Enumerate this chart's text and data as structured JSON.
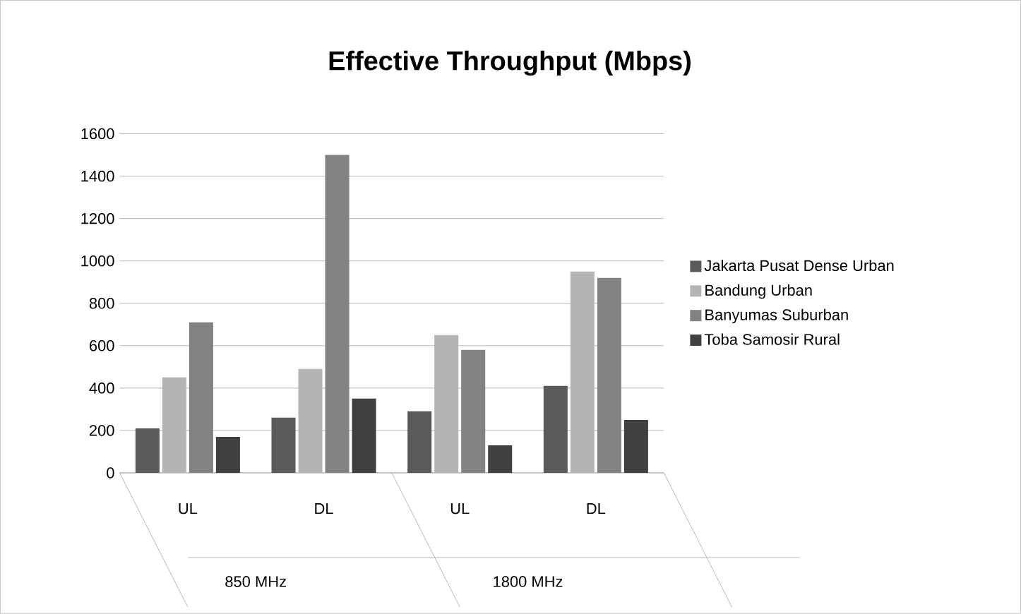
{
  "chart_data": {
    "type": "bar",
    "title": "Effective Throughput (Mbps)",
    "categories": [
      "UL",
      "DL",
      "UL",
      "DL"
    ],
    "annotations": [
      "850 MHz",
      "1800 MHz"
    ],
    "series": [
      {
        "name": "Jakarta Pusat Dense Urban",
        "color": "#5a5a5a",
        "values": [
          210,
          260,
          290,
          410
        ]
      },
      {
        "name": "Bandung Urban",
        "color": "#b4b4b4",
        "values": [
          450,
          490,
          650,
          950
        ]
      },
      {
        "name": "Banyumas Suburban",
        "color": "#828282",
        "values": [
          710,
          1500,
          580,
          920
        ]
      },
      {
        "name": "Toba Samosir Rural",
        "color": "#404040",
        "values": [
          170,
          350,
          130,
          250
        ]
      }
    ],
    "ylim": [
      0,
      1600
    ],
    "yticks": [
      0,
      200,
      400,
      600,
      800,
      1000,
      1200,
      1400,
      1600
    ],
    "grid": "y",
    "legend": "right"
  }
}
